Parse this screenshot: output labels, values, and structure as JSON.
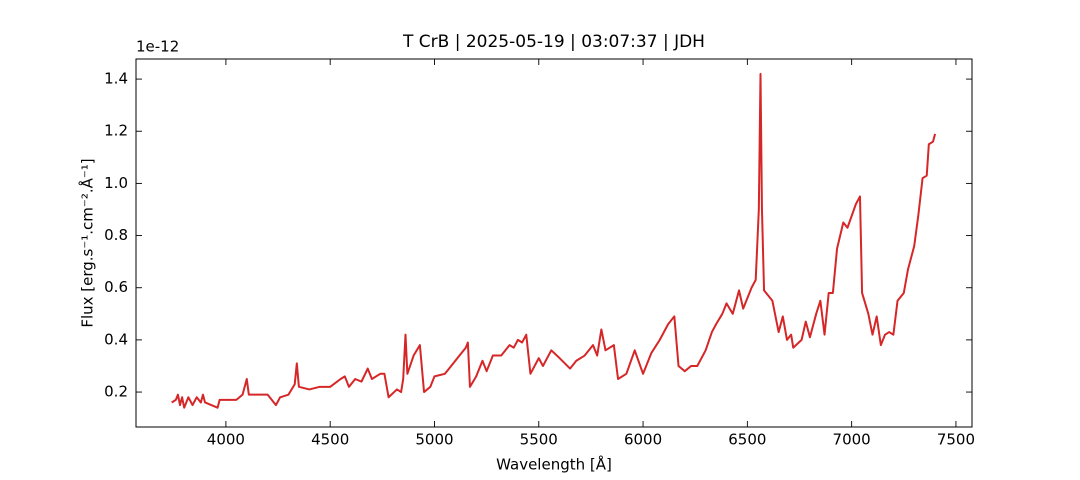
{
  "chart_data": {
    "type": "line",
    "title": "T CrB | 2025-05-19 | 03:07:37 | JDH",
    "x_label": "Wavelength [Å]",
    "y_label": "Flux [erg.s⁻¹.cm⁻².Å⁻¹]",
    "y_offset_label": "1e-12",
    "xlim": [
      3569,
      7577
    ],
    "ylim": [
      0.066,
      1.477
    ],
    "xticks": [
      4000,
      4500,
      5000,
      5500,
      6000,
      6500,
      7000,
      7500
    ],
    "yticks": [
      0.2,
      0.4,
      0.6,
      0.8,
      {
        "value": 1.0,
        "label": "1.0"
      },
      1.2,
      1.4
    ],
    "x": [
      3740,
      3760,
      3770,
      3780,
      3790,
      3800,
      3820,
      3840,
      3860,
      3880,
      3890,
      3900,
      3930,
      3960,
      3970,
      4000,
      4050,
      4080,
      4100,
      4110,
      4150,
      4200,
      4240,
      4260,
      4300,
      4330,
      4340,
      4350,
      4400,
      4450,
      4500,
      4550,
      4570,
      4590,
      4620,
      4650,
      4680,
      4700,
      4740,
      4760,
      4780,
      4820,
      4840,
      4850,
      4861,
      4870,
      4900,
      4930,
      4950,
      4980,
      5000,
      5050,
      5080,
      5120,
      5150,
      5160,
      5170,
      5200,
      5230,
      5250,
      5280,
      5320,
      5360,
      5380,
      5400,
      5420,
      5440,
      5460,
      5500,
      5520,
      5560,
      5600,
      5650,
      5680,
      5720,
      5760,
      5780,
      5800,
      5820,
      5860,
      5880,
      5920,
      5960,
      6000,
      6040,
      6080,
      6120,
      6150,
      6170,
      6200,
      6230,
      6260,
      6300,
      6330,
      6350,
      6380,
      6400,
      6430,
      6460,
      6480,
      6520,
      6540,
      6555,
      6563,
      6570,
      6580,
      6620,
      6650,
      6670,
      6690,
      6710,
      6720,
      6760,
      6780,
      6800,
      6830,
      6850,
      6870,
      6890,
      6910,
      6930,
      6960,
      6980,
      7020,
      7040,
      7050,
      7080,
      7100,
      7120,
      7140,
      7160,
      7180,
      7200,
      7220,
      7250,
      7270,
      7300,
      7320,
      7340,
      7360,
      7370,
      7390,
      7400
    ],
    "series": [
      {
        "color": "#d62728",
        "values": [
          0.16,
          0.17,
          0.19,
          0.15,
          0.18,
          0.14,
          0.18,
          0.15,
          0.18,
          0.16,
          0.19,
          0.16,
          0.15,
          0.14,
          0.17,
          0.17,
          0.17,
          0.19,
          0.25,
          0.19,
          0.19,
          0.19,
          0.15,
          0.18,
          0.19,
          0.23,
          0.31,
          0.22,
          0.21,
          0.22,
          0.22,
          0.25,
          0.26,
          0.22,
          0.25,
          0.24,
          0.29,
          0.25,
          0.27,
          0.27,
          0.18,
          0.21,
          0.2,
          0.25,
          0.42,
          0.27,
          0.34,
          0.38,
          0.2,
          0.22,
          0.26,
          0.27,
          0.3,
          0.34,
          0.37,
          0.39,
          0.22,
          0.26,
          0.32,
          0.28,
          0.34,
          0.34,
          0.38,
          0.37,
          0.4,
          0.39,
          0.42,
          0.27,
          0.33,
          0.3,
          0.36,
          0.33,
          0.29,
          0.32,
          0.34,
          0.38,
          0.34,
          0.44,
          0.36,
          0.38,
          0.25,
          0.27,
          0.36,
          0.27,
          0.35,
          0.4,
          0.46,
          0.49,
          0.3,
          0.28,
          0.3,
          0.3,
          0.36,
          0.43,
          0.46,
          0.5,
          0.54,
          0.5,
          0.59,
          0.52,
          0.6,
          0.63,
          0.9,
          1.42,
          0.9,
          0.59,
          0.55,
          0.43,
          0.49,
          0.4,
          0.42,
          0.37,
          0.4,
          0.47,
          0.41,
          0.5,
          0.55,
          0.42,
          0.58,
          0.58,
          0.75,
          0.85,
          0.83,
          0.92,
          0.95,
          0.58,
          0.5,
          0.42,
          0.49,
          0.38,
          0.42,
          0.43,
          0.42,
          0.55,
          0.58,
          0.67,
          0.76,
          0.88,
          1.02,
          1.03,
          1.15,
          1.16,
          1.19
        ]
      }
    ]
  }
}
